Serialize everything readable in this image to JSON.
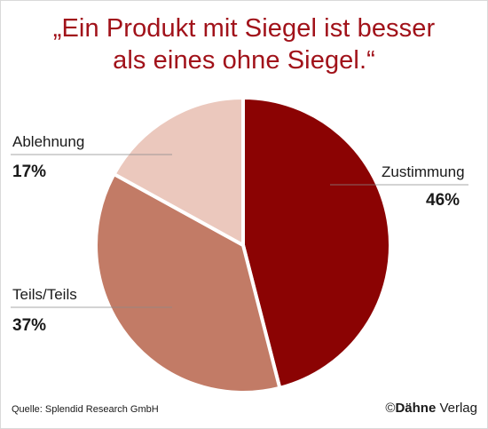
{
  "title_line1": "„Ein Produkt mit Siegel ist besser",
  "title_line2": "als eines ohne Siegel.“",
  "source": "Quelle: Splendid Research GmbH",
  "brand": {
    "copyright": "©",
    "name_bold": "Dähne",
    "name_rest": " Verlag"
  },
  "chart_data": {
    "type": "pie",
    "title": "„Ein Produkt mit Siegel ist besser als eines ohne Siegel.“",
    "slices": [
      {
        "label": "Zustimmung",
        "value": 46,
        "value_label": "46%",
        "color": "#8b0303"
      },
      {
        "label": "Teils/Teils",
        "value": 37,
        "value_label": "37%",
        "color": "#c27b66"
      },
      {
        "label": "Ablehnung",
        "value": 17,
        "value_label": "17%",
        "color": "#ebc8bd"
      }
    ],
    "start": "12 o'clock",
    "direction": "clockwise",
    "legend": "none"
  }
}
